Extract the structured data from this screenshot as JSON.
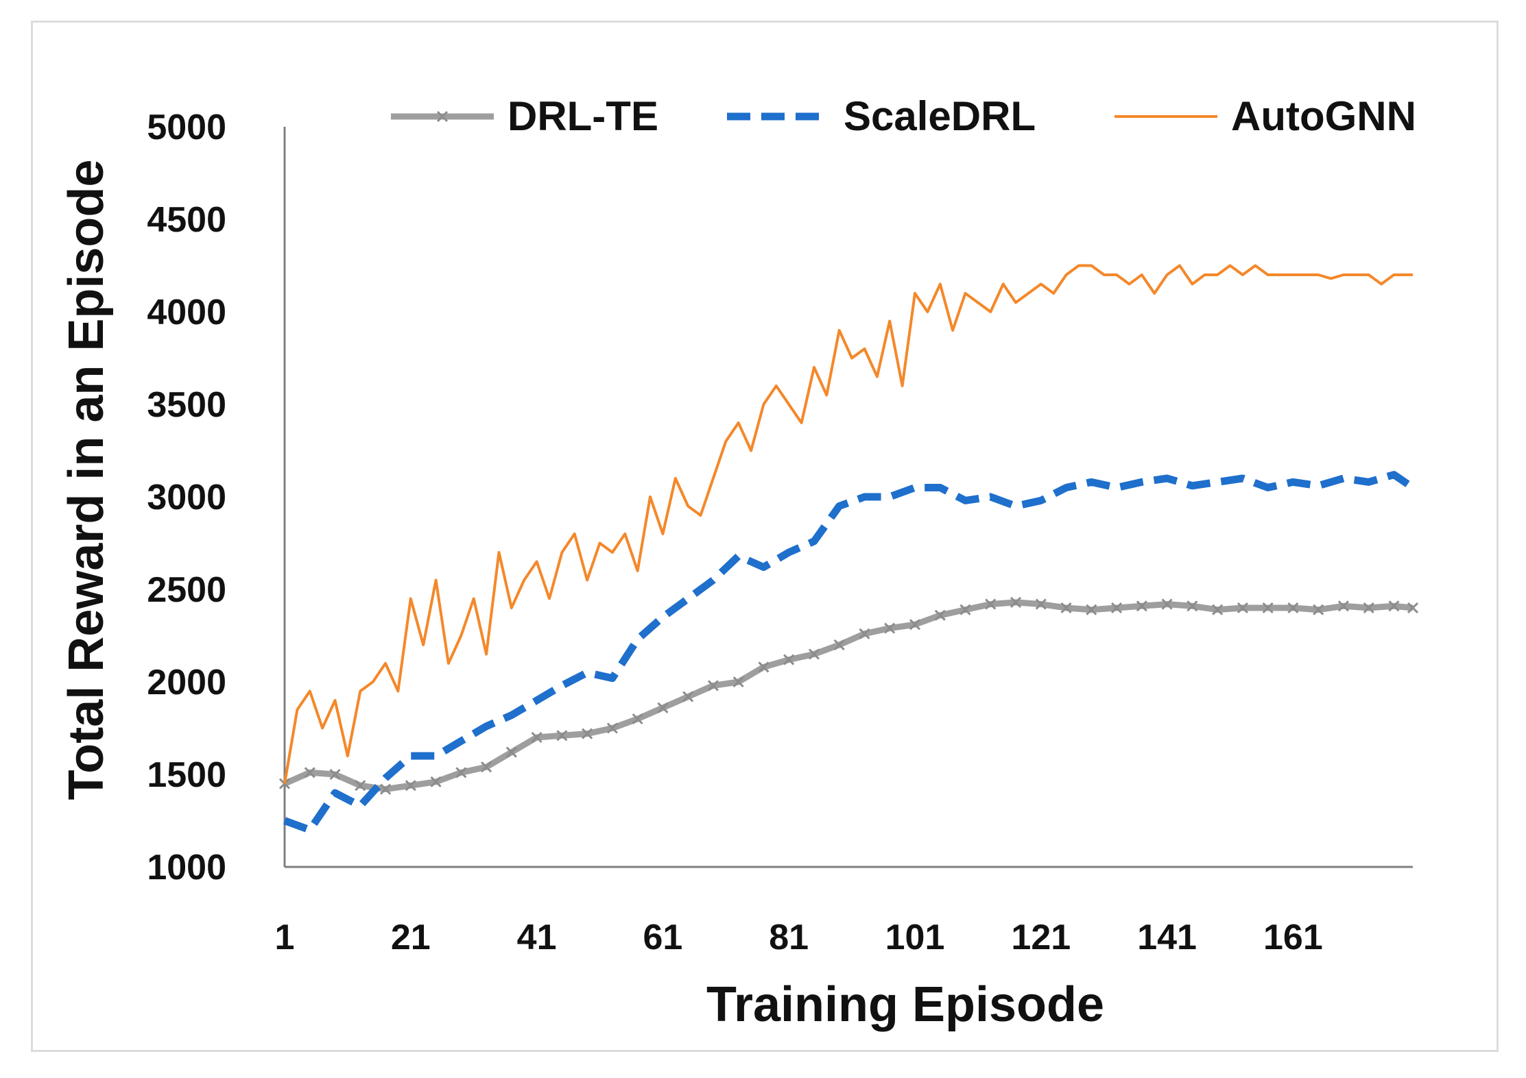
{
  "chart_data": {
    "type": "line",
    "title": "",
    "xlabel": "Training Episode",
    "ylabel": "Total Reward in an Episode",
    "xlim": [
      1,
      180
    ],
    "ylim": [
      1000,
      5000
    ],
    "xticks": [
      1,
      21,
      41,
      61,
      81,
      101,
      121,
      141,
      161
    ],
    "yticks": [
      1000,
      1500,
      2000,
      2500,
      3000,
      3500,
      4000,
      4500,
      5000
    ],
    "legend_position": "top",
    "series": [
      {
        "name": "DRL-TE",
        "color": "#9e9e9e",
        "style": "solid-x-markers",
        "x": [
          1,
          5,
          9,
          13,
          17,
          21,
          25,
          29,
          33,
          37,
          41,
          45,
          49,
          53,
          57,
          61,
          65,
          69,
          73,
          77,
          81,
          85,
          89,
          93,
          97,
          101,
          105,
          109,
          113,
          117,
          121,
          125,
          129,
          133,
          137,
          141,
          145,
          149,
          153,
          157,
          161,
          165,
          169,
          173,
          177,
          180
        ],
        "values": [
          1450,
          1510,
          1500,
          1440,
          1420,
          1440,
          1460,
          1510,
          1540,
          1620,
          1700,
          1710,
          1720,
          1750,
          1800,
          1860,
          1920,
          1980,
          2000,
          2080,
          2120,
          2150,
          2200,
          2260,
          2290,
          2310,
          2360,
          2390,
          2420,
          2430,
          2420,
          2400,
          2390,
          2400,
          2410,
          2420,
          2410,
          2390,
          2400,
          2400,
          2400,
          2390,
          2410,
          2400,
          2410,
          2400
        ]
      },
      {
        "name": "ScaleDRL",
        "color": "#1f6fcc",
        "style": "dashed",
        "x": [
          1,
          5,
          9,
          13,
          17,
          21,
          25,
          29,
          33,
          37,
          41,
          45,
          49,
          53,
          57,
          61,
          65,
          69,
          73,
          77,
          81,
          85,
          89,
          93,
          97,
          101,
          105,
          109,
          113,
          117,
          121,
          125,
          129,
          133,
          137,
          141,
          145,
          149,
          153,
          157,
          161,
          165,
          169,
          173,
          177,
          180
        ],
        "values": [
          1250,
          1200,
          1400,
          1330,
          1480,
          1600,
          1600,
          1680,
          1760,
          1820,
          1900,
          1980,
          2050,
          2020,
          2230,
          2350,
          2450,
          2550,
          2680,
          2620,
          2700,
          2760,
          2950,
          3000,
          3000,
          3050,
          3050,
          2980,
          3000,
          2950,
          2980,
          3050,
          3080,
          3050,
          3080,
          3100,
          3060,
          3080,
          3100,
          3050,
          3080,
          3060,
          3100,
          3080,
          3120,
          3050
        ]
      },
      {
        "name": "AutoGNN",
        "color": "#f4882a",
        "style": "solid",
        "x": [
          1,
          3,
          5,
          7,
          9,
          11,
          13,
          15,
          17,
          19,
          21,
          23,
          25,
          27,
          29,
          31,
          33,
          35,
          37,
          39,
          41,
          43,
          45,
          47,
          49,
          51,
          53,
          55,
          57,
          59,
          61,
          63,
          65,
          67,
          69,
          71,
          73,
          75,
          77,
          79,
          81,
          83,
          85,
          87,
          89,
          91,
          93,
          95,
          97,
          99,
          101,
          103,
          105,
          107,
          109,
          111,
          113,
          115,
          117,
          119,
          121,
          123,
          125,
          127,
          129,
          131,
          133,
          135,
          137,
          139,
          141,
          143,
          145,
          147,
          149,
          151,
          153,
          155,
          157,
          159,
          161,
          163,
          165,
          167,
          169,
          171,
          173,
          175,
          177,
          180
        ],
        "values": [
          1450,
          1850,
          1950,
          1750,
          1900,
          1600,
          1950,
          2000,
          2100,
          1950,
          2450,
          2200,
          2550,
          2100,
          2250,
          2450,
          2150,
          2700,
          2400,
          2550,
          2650,
          2450,
          2700,
          2800,
          2550,
          2750,
          2700,
          2800,
          2600,
          3000,
          2800,
          3100,
          2950,
          2900,
          3100,
          3300,
          3400,
          3250,
          3500,
          3600,
          3500,
          3400,
          3700,
          3550,
          3900,
          3750,
          3800,
          3650,
          3950,
          3600,
          4100,
          4000,
          4150,
          3900,
          4100,
          4050,
          4000,
          4150,
          4050,
          4100,
          4150,
          4100,
          4200,
          4250,
          4250,
          4200,
          4200,
          4150,
          4200,
          4100,
          4200,
          4250,
          4150,
          4200,
          4200,
          4250,
          4200,
          4250,
          4200,
          4200,
          4200,
          4200,
          4200,
          4180,
          4200,
          4200,
          4200,
          4150,
          4200,
          4200
        ]
      }
    ]
  }
}
